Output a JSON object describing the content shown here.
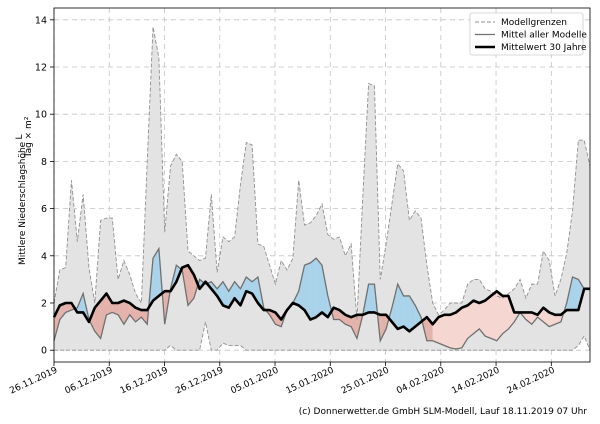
{
  "chart_data": {
    "type": "line",
    "ylabel": "Mittlere Niederschlagshöhe",
    "ylabel_unit_num": "L",
    "ylabel_unit_den": "Tag × m²",
    "ylim": [
      -0.5,
      14.5
    ],
    "yticks": [
      0,
      2,
      4,
      6,
      8,
      10,
      12,
      14
    ],
    "grid": true,
    "legend_position": "top-right",
    "legend": {
      "bounds": "Modellgrenzen",
      "mean_models": "Mittel aller Modelle",
      "mean_30y": "Mittelwert 30 Jahre"
    },
    "x_start": "26.11.2019",
    "x_end": "02.03.2020",
    "xtick_labels": [
      "26.11.2019",
      "06.12.2019",
      "16.12.2019",
      "26.12.2019",
      "05.01.2020",
      "15.01.2020",
      "25.01.2020",
      "04.02.2020",
      "14.02.2020",
      "24.02.2020"
    ],
    "series": [
      {
        "name": "Modellgrenzen (max)",
        "values": [
          2.0,
          3.4,
          3.5,
          7.2,
          4.6,
          6.6,
          3.5,
          2.0,
          5.5,
          5.6,
          5.6,
          3.0,
          3.8,
          3.2,
          2.4,
          2.0,
          8.0,
          13.7,
          12.4,
          5.0,
          7.8,
          8.3,
          8.0,
          4.2,
          4.0,
          3.8,
          3.9,
          6.6,
          3.3,
          4.8,
          4.6,
          4.8,
          7.0,
          8.8,
          8.7,
          4.5,
          4.4,
          3.6,
          2.8,
          3.8,
          3.4,
          3.9,
          7.2,
          5.3,
          5.4,
          5.7,
          6.2,
          4.9,
          4.7,
          4.8,
          4.0,
          4.5,
          1.3,
          6.5,
          11.3,
          11.2,
          3.0,
          4.5,
          6.2,
          7.9,
          7.6,
          5.5,
          5.9,
          5.6,
          3.6,
          2.0,
          1.5,
          1.7,
          2.0,
          2.0,
          2.0,
          2.8,
          3.0,
          3.0,
          2.6,
          2.5,
          2.3,
          2.2,
          2.4,
          2.6,
          3.0,
          2.2,
          2.8,
          2.8,
          4.2,
          3.8,
          2.3,
          3.0,
          4.1,
          5.9,
          8.9,
          8.9,
          7.8
        ]
      },
      {
        "name": "Modellgrenzen (min)",
        "values": [
          0.0,
          0.0,
          0.0,
          0.0,
          0.0,
          0.0,
          0.0,
          0.0,
          0.0,
          0.0,
          0.0,
          0.0,
          0.0,
          0.0,
          0.0,
          0.0,
          0.0,
          0.0,
          0.0,
          0.0,
          0.2,
          0.0,
          0.0,
          0.0,
          0.0,
          0.0,
          1.2,
          0.0,
          0.0,
          0.3,
          0.2,
          0.2,
          0.2,
          0.0,
          0.0,
          0.0,
          0.0,
          0.0,
          0.0,
          0.0,
          0.0,
          0.0,
          0.0,
          0.0,
          0.0,
          0.0,
          0.0,
          0.0,
          0.0,
          0.0,
          0.0,
          0.0,
          0.0,
          0.0,
          0.0,
          0.0,
          0.0,
          0.0,
          0.0,
          0.0,
          0.0,
          0.0,
          0.0,
          0.0,
          0.0,
          0.0,
          0.0,
          0.0,
          0.0,
          0.0,
          0.0,
          0.0,
          0.0,
          0.0,
          0.0,
          0.0,
          0.0,
          0.0,
          0.0,
          0.0,
          0.0,
          0.0,
          0.0,
          0.0,
          0.0,
          0.0,
          0.0,
          0.0,
          0.0,
          0.0,
          0.2,
          0.6,
          0.0
        ]
      },
      {
        "name": "Mittel aller Modelle",
        "values": [
          0.4,
          1.3,
          1.6,
          1.7,
          1.8,
          2.4,
          1.3,
          0.8,
          0.5,
          1.5,
          1.6,
          1.5,
          1.1,
          1.5,
          1.2,
          1.4,
          1.1,
          3.9,
          4.3,
          1.1,
          2.6,
          3.6,
          3.4,
          1.9,
          2.2,
          3.0,
          2.8,
          2.9,
          2.6,
          2.9,
          2.5,
          2.9,
          2.6,
          3.1,
          2.9,
          3.1,
          1.8,
          1.5,
          1.1,
          1.0,
          1.7,
          2.0,
          2.5,
          3.6,
          3.7,
          3.9,
          3.6,
          2.3,
          1.3,
          1.3,
          1.1,
          1.0,
          0.5,
          1.5,
          2.8,
          2.8,
          0.4,
          0.9,
          1.8,
          2.8,
          2.3,
          2.3,
          1.9,
          1.4,
          0.4,
          0.4,
          0.3,
          0.2,
          0.1,
          0.05,
          0.1,
          0.5,
          0.7,
          0.9,
          0.6,
          0.5,
          0.4,
          0.7,
          0.9,
          1.2,
          1.6,
          1.3,
          1.1,
          1.4,
          1.2,
          1.0,
          1.1,
          1.2,
          2.0,
          3.1,
          3.0,
          2.6,
          2.6
        ]
      },
      {
        "name": "Mittelwert 30 Jahre",
        "values": [
          1.4,
          1.9,
          2.0,
          2.0,
          1.6,
          1.6,
          1.2,
          1.8,
          2.1,
          2.4,
          2.0,
          2.0,
          2.1,
          2.0,
          1.8,
          1.7,
          1.7,
          2.1,
          2.3,
          2.5,
          2.5,
          2.9,
          3.5,
          3.6,
          3.2,
          2.6,
          2.9,
          2.6,
          2.3,
          1.9,
          1.8,
          2.2,
          1.9,
          2.5,
          2.4,
          2.0,
          1.7,
          1.7,
          1.6,
          1.3,
          1.7,
          2.0,
          1.9,
          1.7,
          1.3,
          1.4,
          1.6,
          1.4,
          1.8,
          1.7,
          1.5,
          1.4,
          1.5,
          1.5,
          1.6,
          1.6,
          1.5,
          1.5,
          1.2,
          0.9,
          1.0,
          0.8,
          1.0,
          1.2,
          1.4,
          1.1,
          1.4,
          1.5,
          1.5,
          1.6,
          1.8,
          1.9,
          2.1,
          2.0,
          2.1,
          2.3,
          2.5,
          2.3,
          2.3,
          1.6,
          1.6,
          1.6,
          1.6,
          1.5,
          1.8,
          1.6,
          1.5,
          1.5,
          1.7,
          1.7,
          1.7,
          2.6,
          2.6
        ]
      }
    ],
    "colors": {
      "envelope_fill": "#e3e3e3",
      "envelope_edge": "#909090",
      "mean_line": "#707070",
      "above_normal": "#a9d3ea",
      "below_normal": "#e3b2ab",
      "below_normal_light": "#f6d6d1",
      "climate_line": "#000000"
    },
    "credit": "(c) Donnerwetter.de GmbH SLM-Modell, Lauf 18.11.2019 07 Uhr"
  }
}
